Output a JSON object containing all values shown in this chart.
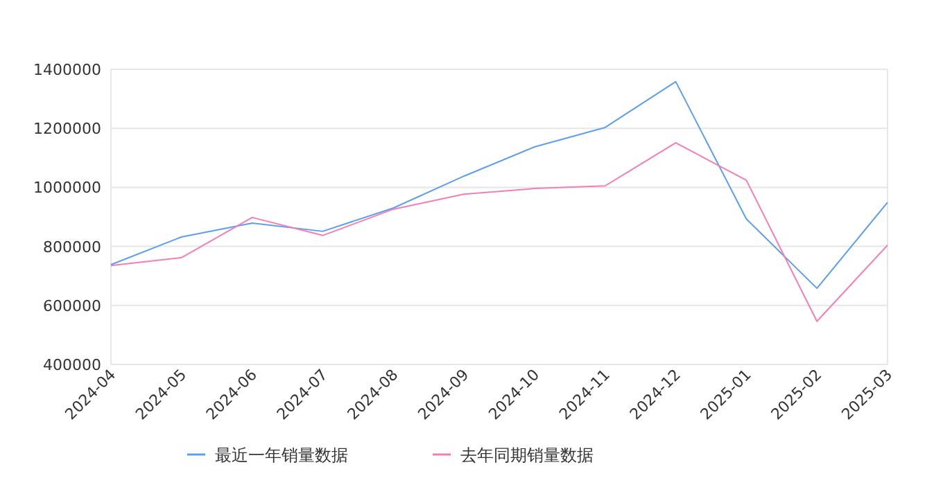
{
  "chart_data": {
    "type": "line",
    "x": [
      "2024-04",
      "2024-05",
      "2024-06",
      "2024-07",
      "2024-08",
      "2024-09",
      "2024-10",
      "2024-11",
      "2024-12",
      "2025-01",
      "2025-02",
      "2025-03"
    ],
    "series": [
      {
        "name": "最近一年销量数据",
        "color": "#5b9ef0",
        "values": [
          738000,
          832000,
          879000,
          851000,
          930000,
          1038000,
          1137000,
          1203000,
          1358000,
          893000,
          658000,
          949000
        ]
      },
      {
        "name": "去年同期销量数据",
        "color": "#f47db5",
        "values": [
          735000,
          762000,
          898000,
          837000,
          926000,
          977000,
          996000,
          1005000,
          1151000,
          1024000,
          546000,
          804000
        ]
      }
    ],
    "ylim": [
      400000,
      1400000
    ],
    "yticks": [
      400000,
      600000,
      800000,
      1000000,
      1200000,
      1400000
    ],
    "grid": "y",
    "legend": "bottom",
    "marker": "none",
    "line_style": "solid"
  }
}
